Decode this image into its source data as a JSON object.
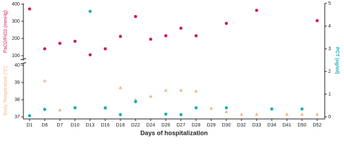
{
  "chart_data": {
    "type": "dot",
    "x_label": "Days of hospitalization",
    "y_label": "PaO2/FiO2 (mmHg)",
    "y3_label": "Body Temperature (℃)",
    "y2_label": "PCT (ng/ml)",
    "categories": [
      "D1",
      "D6",
      "D7",
      "D10",
      "D13",
      "D16",
      "D18",
      "D22",
      "D24",
      "D26",
      "D27",
      "D28",
      "D29",
      "D30",
      "D32",
      "D33",
      "D34",
      "D41",
      "D50",
      "D52"
    ],
    "ylim": [
      80,
      400
    ],
    "yticks": [
      100,
      200,
      300,
      400
    ],
    "y3lim": [
      36.9,
      40
    ],
    "y3ticks": [
      37,
      38,
      39,
      40
    ],
    "y2lim": [
      0,
      5
    ],
    "y2ticks": [
      0,
      1,
      2,
      3,
      4,
      5
    ],
    "series": [
      {
        "name": "PaO2/FiO2",
        "color": "#d21f4b",
        "marker": "circle",
        "axis": "y",
        "values": [
          372,
          140,
          172,
          184,
          105,
          140,
          212,
          328,
          196,
          216,
          260,
          216,
          null,
          288,
          null,
          364,
          null,
          null,
          null,
          304
        ]
      },
      {
        "name": "Body Temperature",
        "color": "#f6b48c",
        "marker": "triangle",
        "axis": "y3",
        "values": [
          null,
          39.1,
          37.4,
          37.55,
          null,
          37.5,
          38.7,
          38.0,
          38.2,
          38.55,
          38.55,
          38.5,
          37.5,
          37.3,
          37.15,
          37.15,
          null,
          37.15,
          37.15,
          37.15
        ]
      },
      {
        "name": "PCT",
        "color": "#1ab0b8",
        "marker": "circle",
        "axis": "y2",
        "values": [
          0.05,
          0.33,
          null,
          0.4,
          4.65,
          0.4,
          0.1,
          0.67,
          null,
          0.12,
          0.1,
          0.4,
          null,
          0.4,
          null,
          null,
          0.35,
          null,
          0.35,
          null
        ]
      }
    ]
  }
}
